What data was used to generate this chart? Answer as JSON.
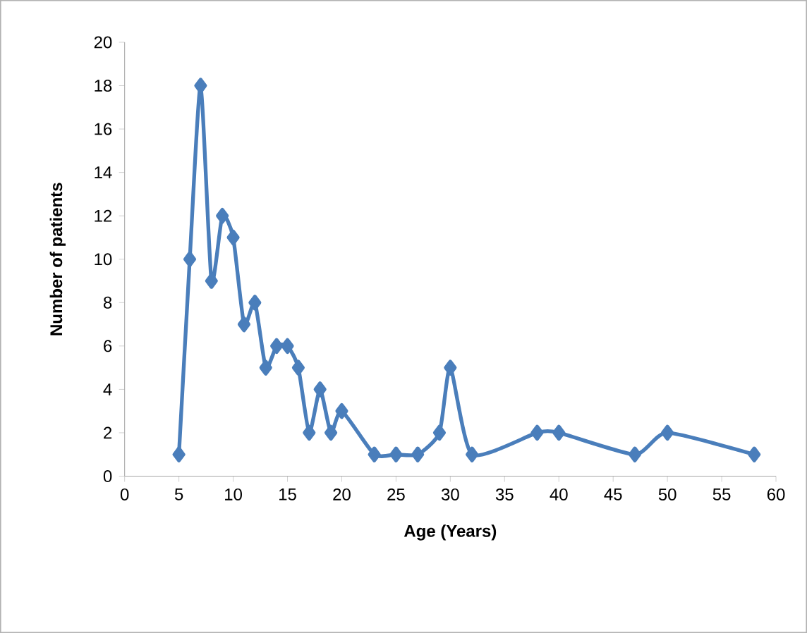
{
  "chart_data": {
    "type": "line",
    "xlabel": "Age (Years)",
    "ylabel": "Number of patients",
    "x": [
      5,
      6,
      7,
      8,
      9,
      10,
      11,
      12,
      13,
      14,
      15,
      16,
      17,
      18,
      19,
      20,
      23,
      25,
      27,
      29,
      30,
      32,
      38,
      40,
      47,
      50,
      58
    ],
    "series": [
      {
        "color": "#4a7ebb",
        "values": [
          1,
          10,
          18,
          9,
          12,
          11,
          7,
          8,
          5,
          6,
          6,
          5,
          2,
          4,
          2,
          3,
          1,
          1,
          1,
          2,
          5,
          1,
          2,
          2,
          1,
          2,
          1
        ]
      }
    ],
    "xlim": [
      0,
      60
    ],
    "xticks": [
      0,
      5,
      10,
      15,
      20,
      25,
      30,
      35,
      40,
      45,
      50,
      55,
      60
    ],
    "ylim": [
      0,
      20
    ],
    "yticks": [
      0,
      2,
      4,
      6,
      8,
      10,
      12,
      14,
      16,
      18,
      20
    ],
    "grid": false,
    "marker": "diamond",
    "line_style": "solid"
  }
}
